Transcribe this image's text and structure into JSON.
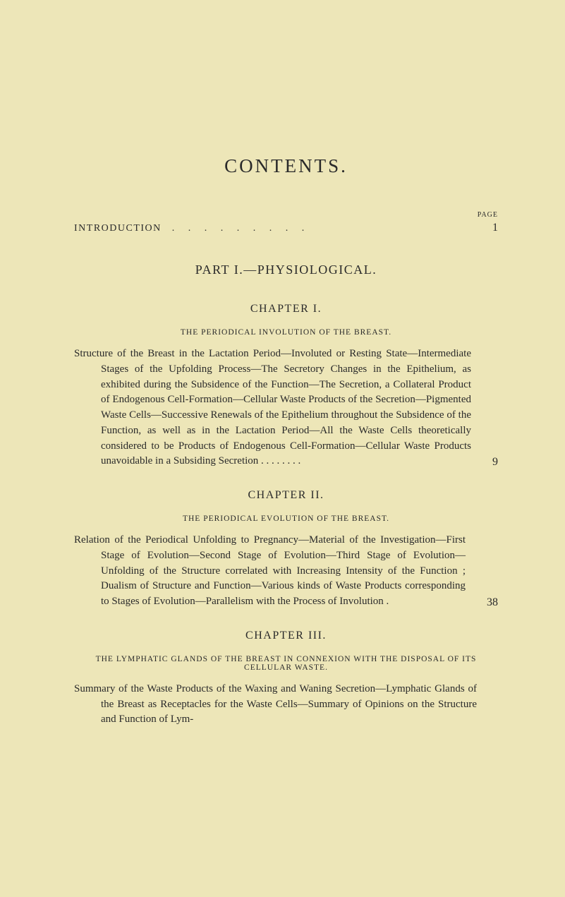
{
  "title": "CONTENTS.",
  "page_label": "PAGE",
  "introduction": {
    "label": "INTRODUCTION",
    "dots": ". . . . . . . . .",
    "page": "1"
  },
  "part": {
    "title": "PART I.—PHYSIOLOGICAL."
  },
  "chapters": [
    {
      "heading": "CHAPTER I.",
      "subtitle": "THE PERIODICAL INVOLUTION OF THE BREAST.",
      "entry_text": "Structure of the Breast in the Lactation Period—Involuted or Resting State—Intermediate Stages of the Upfolding Process—The Secretory Changes in the Epithelium, as exhibited during the Subsidence of the Function—The Secretion, a Collateral Product of Endogenous Cell-Formation—Cellular Waste Products of the Secretion—Pigmented Waste Cells—Successive Renewals of the Epithelium throughout the Subsidence of the Function, as well as in the Lactation Period—All the Waste Cells theoretically considered to be Products of Endogenous Cell-Formation—Cellular Waste Products unavoidable in a Subsiding Secretion  .  .  .  .  .  .  .  .",
      "page": "9"
    },
    {
      "heading": "CHAPTER II.",
      "subtitle": "THE PERIODICAL EVOLUTION OF THE BREAST.",
      "entry_text": "Relation of the Periodical Unfolding to Pregnancy—Material of the Investigation—First Stage of Evolution—Second Stage of Evolution—Third Stage of Evolution—Unfolding of the Structure correlated with Increasing Intensity of the Function ; Dualism of Structure and Function—Various kinds of Waste Products corresponding to Stages of Evolution—Parallelism with the Process of Involution   .",
      "page": "38"
    },
    {
      "heading": "CHAPTER III.",
      "subtitle": "THE LYMPHATIC GLANDS OF THE BREAST IN CONNEXION WITH THE DISPOSAL OF ITS CELLULAR WASTE.",
      "entry_text": "Summary of the Waste Products of the Waxing and Waning Secretion—Lymphatic Glands of the Breast as Receptacles for the Waste Cells—Summary of Opinions on the Structure and Function of Lym-",
      "page": ""
    }
  ],
  "colors": {
    "background": "#ede6b8",
    "text": "#2a2a2a"
  },
  "typography": {
    "title_fontsize": 27,
    "body_fontsize": 15,
    "chapter_fontsize": 16,
    "subtitle_fontsize": 11.5,
    "font_family": "Georgia, Times New Roman, serif"
  }
}
